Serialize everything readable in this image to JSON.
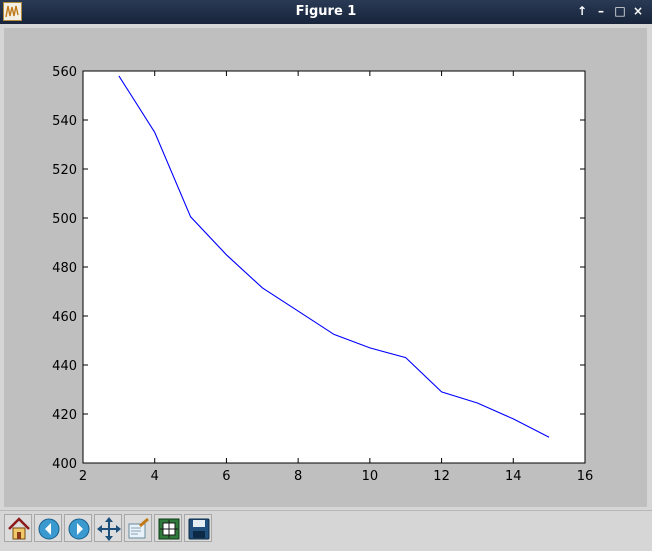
{
  "window": {
    "title": "Figure 1",
    "controls": [
      "↑",
      "–",
      "□",
      "×"
    ]
  },
  "toolbar": {
    "tools": [
      "home-icon",
      "back-arrow-icon",
      "forward-arrow-icon",
      "pan-move-icon",
      "zoom-to-rect-icon",
      "configure-subplots-icon",
      "save-disk-icon"
    ]
  },
  "chart_data": {
    "type": "line",
    "title": "",
    "xlabel": "",
    "ylabel": "",
    "xlim": [
      2,
      16
    ],
    "ylim": [
      400,
      560
    ],
    "xticks": [
      "2",
      "4",
      "6",
      "8",
      "10",
      "12",
      "14",
      "16"
    ],
    "yticks": [
      "400",
      "420",
      "440",
      "460",
      "480",
      "500",
      "520",
      "540",
      "560"
    ],
    "grid": false,
    "series": [
      {
        "color": "#0000ff",
        "x": [
          3,
          4,
          5,
          6,
          7,
          8,
          9,
          10,
          11,
          12,
          13,
          14,
          15
        ],
        "y": [
          558,
          535,
          500.5,
          485,
          471.5,
          462,
          452.5,
          447,
          443,
          429,
          424.5,
          418,
          410.5
        ]
      }
    ]
  }
}
